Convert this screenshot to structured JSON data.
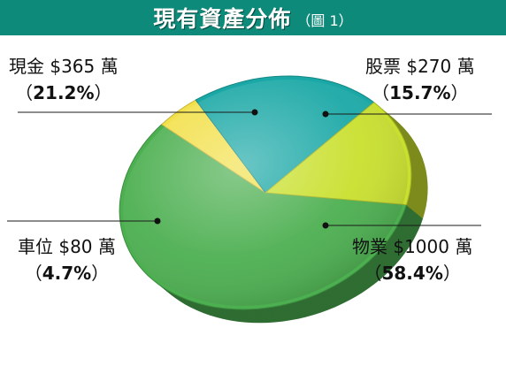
{
  "title": "現有資產分佈",
  "title_note": "（圖 1）",
  "chart_data": {
    "type": "pie",
    "unit": "萬",
    "slices": [
      {
        "name": "物業",
        "amount_label": "$1000 萬",
        "value": 1000,
        "percent_label": "58.4%",
        "color": "#4caf50"
      },
      {
        "name": "車位",
        "amount_label": "$80 萬",
        "value": 80,
        "percent_label": "4.7%",
        "color": "#f2e04a"
      },
      {
        "name": "現金",
        "amount_label": "$365 萬",
        "value": 365,
        "percent_label": "21.2%",
        "color": "#1aa8a6"
      },
      {
        "name": "股票",
        "amount_label": "$270 萬",
        "value": 270,
        "percent_label": "15.7%",
        "color": "#c9e02e"
      }
    ]
  }
}
